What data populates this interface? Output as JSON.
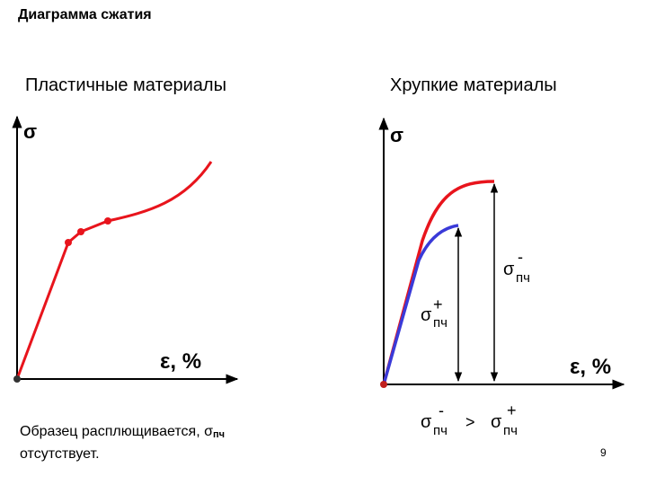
{
  "title": "Диаграмма сжатия",
  "left_panel": {
    "heading": "Пластичные материалы",
    "y_axis_label": "σ",
    "x_axis_label": "ε, %",
    "caption_line1": "Образец расплющивается, σ",
    "caption_sub": "пч",
    "caption_line2": "отсутствует."
  },
  "right_panel": {
    "heading": "Хрупкие материалы",
    "y_axis_label": "σ",
    "x_axis_label": "ε, %",
    "sigma_minus": {
      "symbol": "σ",
      "sup": "-",
      "sub": "пч"
    },
    "sigma_plus": {
      "symbol": "σ",
      "sup": "+",
      "sub": "пч"
    },
    "comparison": {
      "left_symbol": "σ",
      "left_sup": "-",
      "left_sub": "пч",
      "operator": ">",
      "right_symbol": "σ",
      "right_sup": "+",
      "right_sub": "пч"
    }
  },
  "colors": {
    "curve_red": "#e8141c",
    "curve_blue": "#3a3ad8",
    "axis": "#000000"
  },
  "page_number": "9"
}
